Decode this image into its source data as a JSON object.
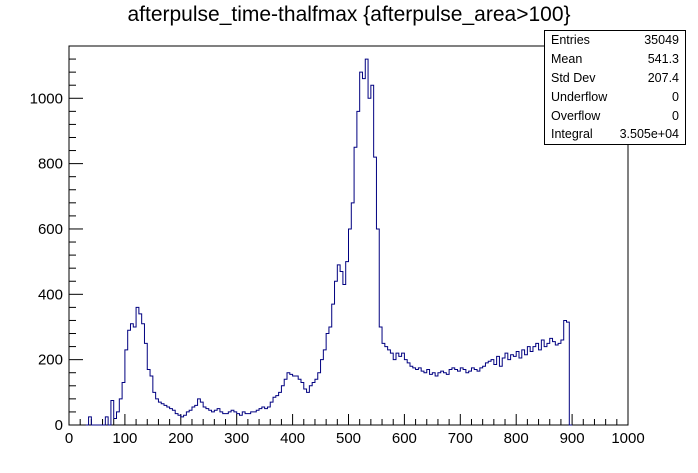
{
  "window": {
    "title": "afterpulse_time-thalfmax {afterpulse_area>100}"
  },
  "stats": [
    {
      "label": "Entries",
      "value": "35049"
    },
    {
      "label": "Mean",
      "value": "541.3"
    },
    {
      "label": "Std Dev",
      "value": "207.4"
    },
    {
      "label": "Underflow",
      "value": "0"
    },
    {
      "label": "Overflow",
      "value": "0"
    },
    {
      "label": "Integral",
      "value": "3.505e+04"
    }
  ],
  "colors": {
    "line": "#000080",
    "axis": "#000000",
    "background": "#ffffff"
  },
  "chart_data": {
    "type": "histogram",
    "title": "afterpulse_time-thalfmax {afterpulse_area>100}",
    "xlabel": "",
    "ylabel": "",
    "xlim": [
      0,
      1000
    ],
    "ylim": [
      0,
      1160
    ],
    "xticks": [
      0,
      100,
      200,
      300,
      400,
      500,
      600,
      700,
      800,
      900,
      1000
    ],
    "yticks": [
      0,
      200,
      400,
      600,
      800,
      1000
    ],
    "bin_width": 5,
    "bins_start": 30,
    "values": [
      0,
      25,
      0,
      0,
      0,
      0,
      0,
      25,
      0,
      75,
      20,
      40,
      80,
      130,
      230,
      290,
      310,
      300,
      360,
      340,
      310,
      250,
      170,
      150,
      100,
      80,
      70,
      65,
      60,
      55,
      50,
      45,
      35,
      30,
      25,
      30,
      40,
      45,
      55,
      60,
      80,
      70,
      55,
      50,
      45,
      40,
      45,
      50,
      40,
      35,
      35,
      40,
      45,
      40,
      35,
      30,
      40,
      35,
      35,
      40,
      40,
      45,
      50,
      55,
      50,
      55,
      70,
      85,
      90,
      100,
      120,
      140,
      160,
      155,
      150,
      150,
      140,
      130,
      110,
      100,
      120,
      130,
      140,
      160,
      200,
      230,
      280,
      300,
      370,
      440,
      490,
      470,
      430,
      500,
      600,
      680,
      850,
      960,
      1080,
      1060,
      1120,
      1000,
      1040,
      820,
      600,
      300,
      250,
      240,
      230,
      220,
      200,
      220,
      210,
      220,
      200,
      190,
      180,
      175,
      170,
      175,
      165,
      160,
      170,
      155,
      160,
      150,
      160,
      165,
      160,
      155,
      170,
      175,
      170,
      165,
      175,
      170,
      160,
      165,
      175,
      170,
      165,
      175,
      180,
      190,
      195,
      200,
      185,
      210,
      180,
      205,
      220,
      200,
      215,
      210,
      225,
      205,
      230,
      215,
      240,
      225,
      240,
      250,
      230,
      260,
      240,
      250,
      265,
      255,
      245,
      250,
      260,
      320,
      315,
      0
    ],
    "legend": "top-right"
  }
}
